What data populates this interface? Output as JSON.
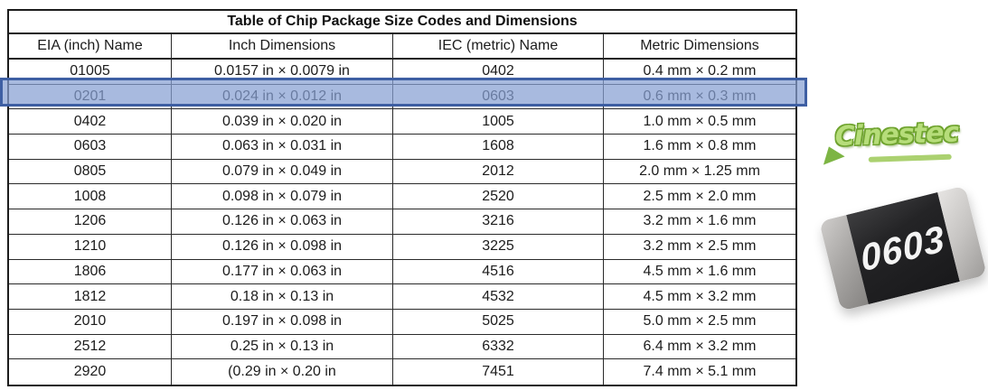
{
  "chart_data": {
    "type": "table",
    "title": "Table of Chip Package Size Codes and Dimensions",
    "columns": [
      "EIA (inch) Name",
      "Inch Dimensions",
      "IEC (metric) Name",
      "Metric Dimensions"
    ],
    "rows": [
      [
        "01005",
        "0.0157 in × 0.0079 in",
        "0402",
        "0.4 mm × 0.2 mm"
      ],
      [
        "0201",
        "0.024 in × 0.012 in",
        "0603",
        "0.6 mm × 0.3 mm"
      ],
      [
        "0402",
        "0.039 in × 0.020 in",
        "1005",
        "1.0 mm × 0.5 mm"
      ],
      [
        "0603",
        "0.063 in × 0.031 in",
        "1608",
        "1.6 mm × 0.8 mm"
      ],
      [
        "0805",
        "0.079 in × 0.049 in",
        "2012",
        "2.0 mm × 1.25 mm"
      ],
      [
        "1008",
        "0.098 in × 0.079 in",
        "2520",
        "2.5 mm × 2.0 mm"
      ],
      [
        "1206",
        "0.126 in × 0.063 in",
        "3216",
        "3.2 mm × 1.6 mm"
      ],
      [
        "1210",
        "0.126 in × 0.098 in",
        "3225",
        "3.2 mm × 2.5 mm"
      ],
      [
        "1806",
        "0.177 in × 0.063 in",
        "4516",
        "4.5 mm × 1.6 mm"
      ],
      [
        "1812",
        "0.18 in × 0.13 in",
        "4532",
        "4.5 mm × 3.2 mm"
      ],
      [
        "2010",
        "0.197 in × 0.098 in",
        "5025",
        "5.0 mm × 2.5 mm"
      ],
      [
        "2512",
        "0.25 in × 0.13 in",
        "6332",
        "6.4 mm × 3.2 mm"
      ],
      [
        "2920",
        "(0.29 in × 0.20 in",
        "7451",
        "7.4 mm × 5.1 mm"
      ]
    ],
    "highlighted_row": {
      "eia_name": "0201",
      "iec_name": "0603",
      "fill_color": "#8ea6d3",
      "border_color": "#3e5fa3"
    },
    "layout_hints": {
      "grid": "on",
      "legend": "none"
    }
  },
  "logo": {
    "text": "Cinestec",
    "color": "#8dc63f"
  },
  "chip_photo": {
    "label": "0603",
    "body_color": "#232325",
    "terminal_color": "#c0bebc"
  }
}
